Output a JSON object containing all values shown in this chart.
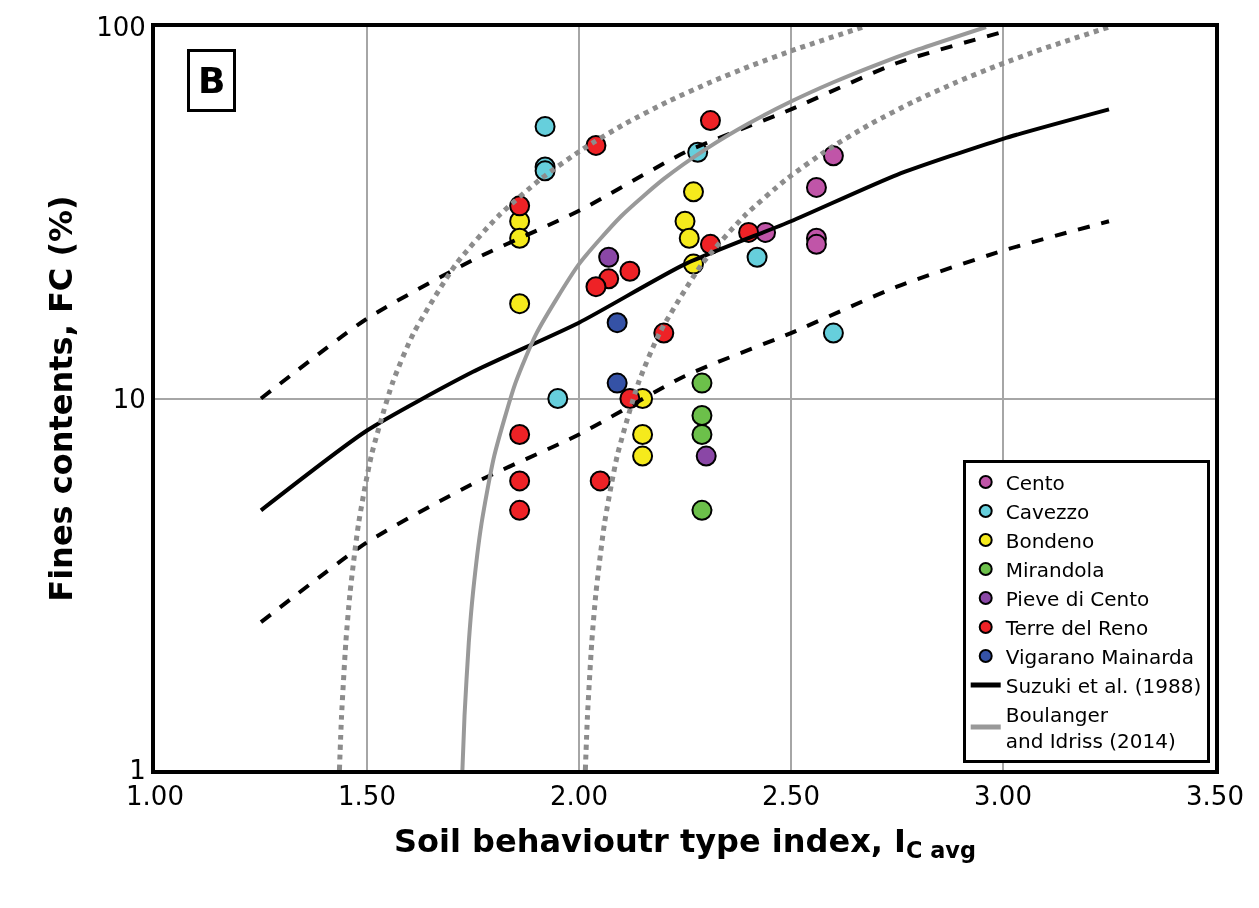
{
  "chart_data": {
    "type": "scatter",
    "xlabel": "Soil behavioutr type index, I$_{C avg}$",
    "ylabel": "Fines contents, FC (%)",
    "annotations": [
      "B"
    ],
    "xlim": [
      1,
      3.5
    ],
    "xticks": [
      {
        "value": 1,
        "label": "1.00"
      },
      {
        "value": 1.5,
        "label": "1.50"
      },
      {
        "value": 2,
        "label": "2.00"
      },
      {
        "value": 2.5,
        "label": "2.50"
      },
      {
        "value": 3,
        "label": "3.00"
      },
      {
        "value": 3.5,
        "label": "3.50"
      }
    ],
    "ylim": [
      1,
      100
    ],
    "yticks": [
      1,
      10,
      100
    ],
    "log": "y",
    "grid": true,
    "legend": "bottom right",
    "marker": "circle",
    "series": [
      {
        "name": "Cento",
        "color": "#c055a8",
        "x": [
          2.6,
          2.56,
          2.44,
          2.56,
          2.56
        ],
        "values": [
          45,
          37,
          28,
          27,
          26
        ]
      },
      {
        "name": "Cavezzo",
        "color": "#66cfdc",
        "x": [
          1.92,
          1.92,
          1.92,
          2.28,
          2.42,
          2.6,
          1.95
        ],
        "values": [
          54,
          42,
          41,
          46,
          24,
          15,
          10
        ]
      },
      {
        "name": "Bondeno",
        "color": "#f5ea1c",
        "x": [
          1.86,
          1.86,
          1.86,
          2.27,
          2.25,
          2.26,
          2.27,
          2.15,
          2.15,
          2.15
        ],
        "values": [
          30,
          27,
          18,
          36,
          30,
          27,
          23,
          10,
          8,
          7
        ]
      },
      {
        "name": "Mirandola",
        "color": "#6cc04a",
        "x": [
          2.29,
          2.29,
          2.29,
          2.29
        ],
        "values": [
          11,
          9,
          8,
          5
        ]
      },
      {
        "name": "Pieve di Cento",
        "color": "#8a47a6",
        "x": [
          2.07,
          2.3
        ],
        "values": [
          24,
          7
        ]
      },
      {
        "name": "Terre del Reno",
        "color": "#ee2226",
        "x": [
          1.86,
          2.04,
          2.31,
          2.31,
          2.4,
          2.12,
          2.07,
          2.04,
          2.2,
          2.12,
          1.86,
          1.86,
          2.05,
          1.86
        ],
        "values": [
          33,
          48,
          56,
          26,
          28,
          22,
          21,
          20,
          15,
          10,
          8,
          6,
          6,
          5
        ]
      },
      {
        "name": "Vigarano Mainarda",
        "color": "#3552a6",
        "x": [
          2.09,
          2.09
        ],
        "values": [
          16,
          11
        ]
      },
      {
        "name": "Suzuki et al. (1988)",
        "type": "line",
        "line_style": "solid",
        "marker": "none",
        "color": "#000000",
        "x": [
          1.25,
          1.5,
          1.75,
          2.0,
          2.25,
          2.5,
          2.75,
          3.0,
          3.25
        ],
        "values": [
          5,
          8.2,
          11.8,
          16,
          23,
          30,
          40,
          50,
          60
        ]
      },
      {
        "type": "line",
        "line_style": "dashed",
        "marker": "none",
        "color": "#000000",
        "x": [
          1.25,
          1.5,
          1.75,
          2.0,
          2.25,
          2.5,
          2.75,
          3.0
        ],
        "values": [
          10,
          16.4,
          23.6,
          32,
          46,
          60,
          80,
          97
        ]
      },
      {
        "type": "line",
        "line_style": "dashed",
        "marker": "none",
        "color": "#000000",
        "x": [
          1.25,
          1.5,
          1.75,
          2.0,
          2.25,
          2.5,
          2.75,
          3.0,
          3.25
        ],
        "values": [
          2.5,
          4.1,
          5.9,
          8,
          11.5,
          15,
          20,
          25,
          30
        ]
      },
      {
        "name": "Boulanger\nand Idriss (2014)",
        "type": "line",
        "line_style": "solid",
        "marker": "none",
        "color": "#999999",
        "x": [
          1.725,
          1.73,
          1.74,
          1.75,
          1.77,
          1.8,
          1.85,
          1.9,
          2.0,
          2.1,
          2.2,
          2.3,
          2.4,
          2.5,
          2.6,
          2.7,
          2.8,
          2.96
        ],
        "values": [
          1,
          1.4,
          2.2,
          3,
          4.6,
          7,
          11,
          15,
          23,
          31,
          39,
          47,
          55,
          63,
          71,
          79,
          87,
          100
        ]
      },
      {
        "type": "line",
        "line_style": "dotted",
        "marker": "none",
        "color": "#8c8c8c",
        "x": [
          1.435,
          1.44,
          1.45,
          1.46,
          1.48,
          1.51,
          1.56,
          1.61,
          1.71,
          1.81,
          1.91,
          2.01,
          2.11,
          2.21,
          2.31,
          2.41,
          2.51,
          2.67
        ],
        "values": [
          1,
          1.4,
          2.2,
          3,
          4.6,
          7,
          11,
          15,
          23,
          31,
          39,
          47,
          55,
          63,
          71,
          79,
          87,
          100
        ]
      },
      {
        "type": "line",
        "line_style": "dotted",
        "marker": "none",
        "color": "#8c8c8c",
        "x": [
          2.015,
          2.02,
          2.03,
          2.04,
          2.06,
          2.09,
          2.14,
          2.19,
          2.29,
          2.39,
          2.49,
          2.59,
          2.69,
          2.79,
          2.89,
          2.99,
          3.09,
          3.25
        ],
        "values": [
          1,
          1.4,
          2.2,
          3,
          4.6,
          7,
          11,
          15,
          23,
          31,
          39,
          47,
          55,
          63,
          71,
          79,
          87,
          100
        ]
      }
    ]
  }
}
